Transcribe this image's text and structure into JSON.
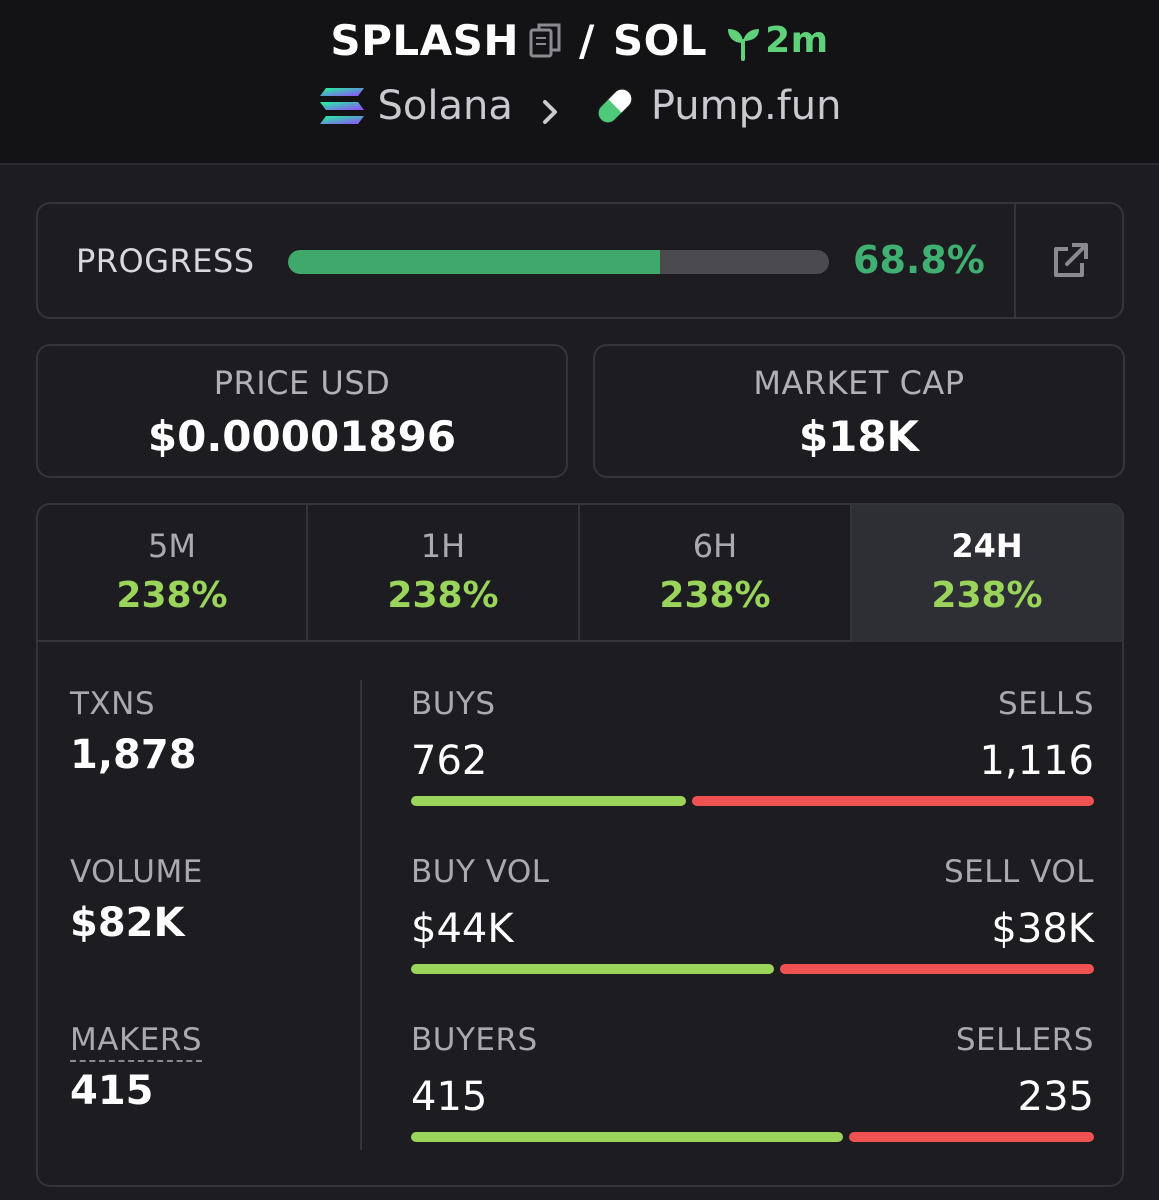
{
  "header": {
    "token_symbol": "SPLASH",
    "separator": "/",
    "quote_symbol": "SOL",
    "age": "2m",
    "chain": "Solana",
    "dex": "Pump.fun",
    "icons": [
      "copy-icon",
      "sprout-icon",
      "solana-logo-icon",
      "chevron-right-icon",
      "pill-icon"
    ]
  },
  "progress": {
    "label": "PROGRESS",
    "percent_text": "68.8%",
    "fraction": 0.688,
    "icon": "external-link-icon"
  },
  "metrics": {
    "price_label": "PRICE USD",
    "price_value": "$0.00001896",
    "mcap_label": "MARKET CAP",
    "mcap_value": "$18K"
  },
  "tabs": [
    {
      "label": "5M",
      "value": "238%"
    },
    {
      "label": "1H",
      "value": "238%"
    },
    {
      "label": "6H",
      "value": "238%"
    },
    {
      "label": "24H",
      "value": "238%",
      "active": true
    }
  ],
  "stats": {
    "txns_label": "TXNS",
    "txns_value": "1,878",
    "volume_label": "VOLUME",
    "volume_value": "$82K",
    "makers_label": "MAKERS",
    "makers_value": "415"
  },
  "pairs": [
    {
      "left_label": "BUYS",
      "right_label": "SELLS",
      "left_value": "762",
      "right_value": "1,116",
      "left_num": 762,
      "right_num": 1116
    },
    {
      "left_label": "BUY VOL",
      "right_label": "SELL VOL",
      "left_value": "$44K",
      "right_value": "$38K",
      "left_num": 44,
      "right_num": 38
    },
    {
      "left_label": "BUYERS",
      "right_label": "SELLERS",
      "left_value": "415",
      "right_value": "235",
      "left_num": 415,
      "right_num": 235
    }
  ],
  "colors": {
    "buy": "#9ad45a",
    "sell": "#f05252",
    "progress": "#3fa86b",
    "age": "#5ed17a"
  }
}
